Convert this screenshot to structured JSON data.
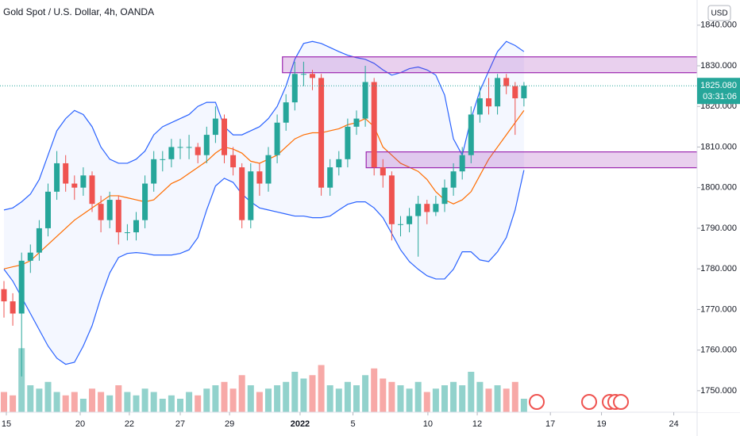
{
  "chart_data": {
    "type": "candlestick",
    "title": "Gold Spot / U.S. Dollar, 4h, OANDA",
    "currency": "USD",
    "open": [
      1775,
      1772,
      1769,
      1782,
      1784,
      1790,
      1799,
      1806,
      1801,
      1800,
      1803,
      1796,
      1792,
      1797,
      1789,
      1789,
      1792,
      1801,
      1807,
      1807,
      1810,
      1810,
      1810,
      1808,
      1813,
      1817,
      1808,
      1805,
      1792,
      1804,
      1801,
      1808,
      1816,
      1821,
      1828,
      1828,
      1827,
      1800,
      1805,
      1807,
      1815,
      1817,
      1826,
      1805,
      1803,
      1791,
      1791,
      1793,
      1796,
      1794,
      1796,
      1800,
      1804,
      1808,
      1818,
      1822,
      1820,
      1827,
      1825,
      1822
    ],
    "high": [
      1777,
      1774,
      1784,
      1786,
      1792,
      1801,
      1809,
      1808,
      1803,
      1805,
      1804,
      1798,
      1799,
      1798,
      1791,
      1794,
      1803,
      1809,
      1809,
      1812,
      1812,
      1813,
      1811,
      1815,
      1820,
      1818,
      1810,
      1806,
      1806,
      1806,
      1810,
      1818,
      1823,
      1831,
      1831,
      1829,
      1828,
      1807,
      1809,
      1817,
      1819,
      1830,
      1827,
      1807,
      1804,
      1793,
      1795,
      1798,
      1797,
      1798,
      1802,
      1806,
      1810,
      1820,
      1825,
      1827,
      1828,
      1828,
      1826,
      1826
    ],
    "low": [
      1768,
      1766,
      1753.5,
      1779,
      1782,
      1788,
      1797,
      1799,
      1797,
      1798,
      1794,
      1789,
      1790,
      1786,
      1787,
      1787,
      1790,
      1799,
      1804,
      1805,
      1807,
      1807,
      1806,
      1806,
      1811,
      1806,
      1803,
      1790,
      1790,
      1798,
      1799,
      1806,
      1814,
      1819,
      1825,
      1824,
      1798,
      1798,
      1803,
      1805,
      1813,
      1815,
      1803,
      1800,
      1787,
      1788,
      1789,
      1783,
      1791,
      1793,
      1794,
      1798,
      1802,
      1806,
      1816,
      1818,
      1818,
      1823,
      1813,
      1820
    ],
    "close": [
      1772,
      1769,
      1782,
      1784,
      1790,
      1799,
      1806,
      1801,
      1800,
      1803,
      1796,
      1792,
      1797,
      1789,
      1789,
      1792,
      1801,
      1807,
      1807,
      1810,
      1810,
      1810,
      1808,
      1813,
      1817,
      1808,
      1805,
      1792,
      1804,
      1801,
      1808,
      1816,
      1821,
      1828,
      1828,
      1827,
      1800,
      1805,
      1807,
      1815,
      1817,
      1826,
      1805,
      1803,
      1791,
      1791,
      1793,
      1796,
      1794,
      1796,
      1800,
      1804,
      1808,
      1818,
      1822,
      1820,
      1827,
      1825,
      1822,
      1825.08
    ],
    "volume": [
      30,
      25,
      95,
      40,
      35,
      45,
      30,
      25,
      30,
      20,
      35,
      30,
      25,
      40,
      30,
      25,
      35,
      30,
      20,
      25,
      20,
      30,
      25,
      35,
      40,
      45,
      35,
      55,
      40,
      30,
      35,
      40,
      45,
      60,
      50,
      55,
      70,
      40,
      35,
      45,
      40,
      55,
      65,
      50,
      45,
      40,
      35,
      45,
      30,
      35,
      40,
      45,
      40,
      60,
      45,
      35,
      40,
      35,
      45,
      20
    ],
    "up_color": "#26a69a",
    "down_color": "#ef5350",
    "bands": {
      "upper": [
        1794.5,
        1795,
        1796.5,
        1798.4,
        1802,
        1808,
        1814,
        1817,
        1819,
        1818,
        1815,
        1810,
        1807,
        1806,
        1806,
        1807,
        1809,
        1813,
        1815,
        1816,
        1817,
        1818,
        1820,
        1821,
        1821,
        1815,
        1813,
        1813,
        1814,
        1815,
        1817,
        1820,
        1825,
        1831.6,
        1835.5,
        1836,
        1835.5,
        1834.5,
        1833.5,
        1832.6,
        1832,
        1831.6,
        1830.6,
        1829,
        1827.7,
        1828.3,
        1829.3,
        1829.7,
        1829,
        1827.7,
        1822.8,
        1812,
        1808,
        1817,
        1823.8,
        1828.7,
        1833.5,
        1836,
        1835,
        1833.5
      ],
      "middle": [
        1780,
        1780.5,
        1781,
        1782,
        1784,
        1786,
        1788,
        1790,
        1792,
        1793.5,
        1795,
        1796.5,
        1798,
        1798,
        1797.5,
        1797,
        1796.5,
        1797,
        1799,
        1801,
        1802,
        1803.5,
        1805,
        1806.5,
        1808.5,
        1810,
        1809.5,
        1808.5,
        1806.5,
        1806,
        1807,
        1808,
        1810,
        1812,
        1813,
        1813.5,
        1813.5,
        1814,
        1814.5,
        1815.5,
        1816,
        1817,
        1815,
        1810,
        1808,
        1806,
        1805,
        1804,
        1802,
        1799,
        1797,
        1796,
        1797,
        1799,
        1803,
        1807,
        1810,
        1813,
        1816,
        1819
      ],
      "lower": [
        1779.9,
        1777,
        1773,
        1769,
        1765,
        1761,
        1758,
        1756.5,
        1757,
        1761,
        1766,
        1773,
        1779,
        1782.8,
        1783.8,
        1784,
        1783.8,
        1783.4,
        1783.4,
        1783.4,
        1783.8,
        1784.7,
        1787.7,
        1794.5,
        1800.4,
        1802.3,
        1801.3,
        1798.4,
        1796.5,
        1795,
        1794.5,
        1794,
        1793.5,
        1793,
        1793,
        1792.6,
        1792.6,
        1793,
        1794.5,
        1795.9,
        1796.5,
        1796.5,
        1795,
        1792.6,
        1788.7,
        1784.7,
        1781.8,
        1779.9,
        1778.3,
        1777.5,
        1777.5,
        1779.9,
        1784.2,
        1784.2,
        1782.2,
        1781.8,
        1784.2,
        1787.7,
        1794.5,
        1804.3
      ],
      "band_color": "#2962ff",
      "middle_color": "#ff6d00"
    },
    "zones": [
      {
        "from": 31.6,
        "range": [
          1828.3,
          1832.2
        ]
      },
      {
        "from": 41.1,
        "range": [
          1804.9,
          1808.8
        ]
      }
    ],
    "zone_color": "#9c27b0",
    "last_price": {
      "value": 1825.08,
      "label": "1825.080"
    },
    "countdown": "03:31:06",
    "xlim": [
      -0.45,
      78.65
    ],
    "xticks": [
      {
        "value": 0.27,
        "label": "15"
      },
      {
        "value": 8.65,
        "label": "20"
      },
      {
        "value": 14.23,
        "label": "22"
      },
      {
        "value": 20,
        "label": "27"
      },
      {
        "value": 25.6,
        "label": "29"
      },
      {
        "value": 33.6,
        "label": "2022"
      },
      {
        "value": 39.6,
        "label": "5"
      },
      {
        "value": 48.1,
        "label": "10"
      },
      {
        "value": 53.7,
        "label": "12"
      },
      {
        "value": 62,
        "label": "17"
      },
      {
        "value": 67.8,
        "label": "19"
      },
      {
        "value": 76,
        "label": "24"
      }
    ],
    "ylim": [
      1744.7,
      1846.2
    ],
    "yticks": [
      {
        "value": 1750,
        "label": "1750.000"
      },
      {
        "value": 1760,
        "label": "1760.000"
      },
      {
        "value": 1770,
        "label": "1770.000"
      },
      {
        "value": 1780,
        "label": "1780.000"
      },
      {
        "value": 1790,
        "label": "1790.000"
      },
      {
        "value": 1800,
        "label": "1800.000"
      },
      {
        "value": 1810,
        "label": "1810.000"
      },
      {
        "value": 1820,
        "label": "1820.000"
      },
      {
        "value": 1830,
        "label": "1830.000"
      },
      {
        "value": 1840,
        "label": "1840.000"
      }
    ],
    "grid": false
  }
}
